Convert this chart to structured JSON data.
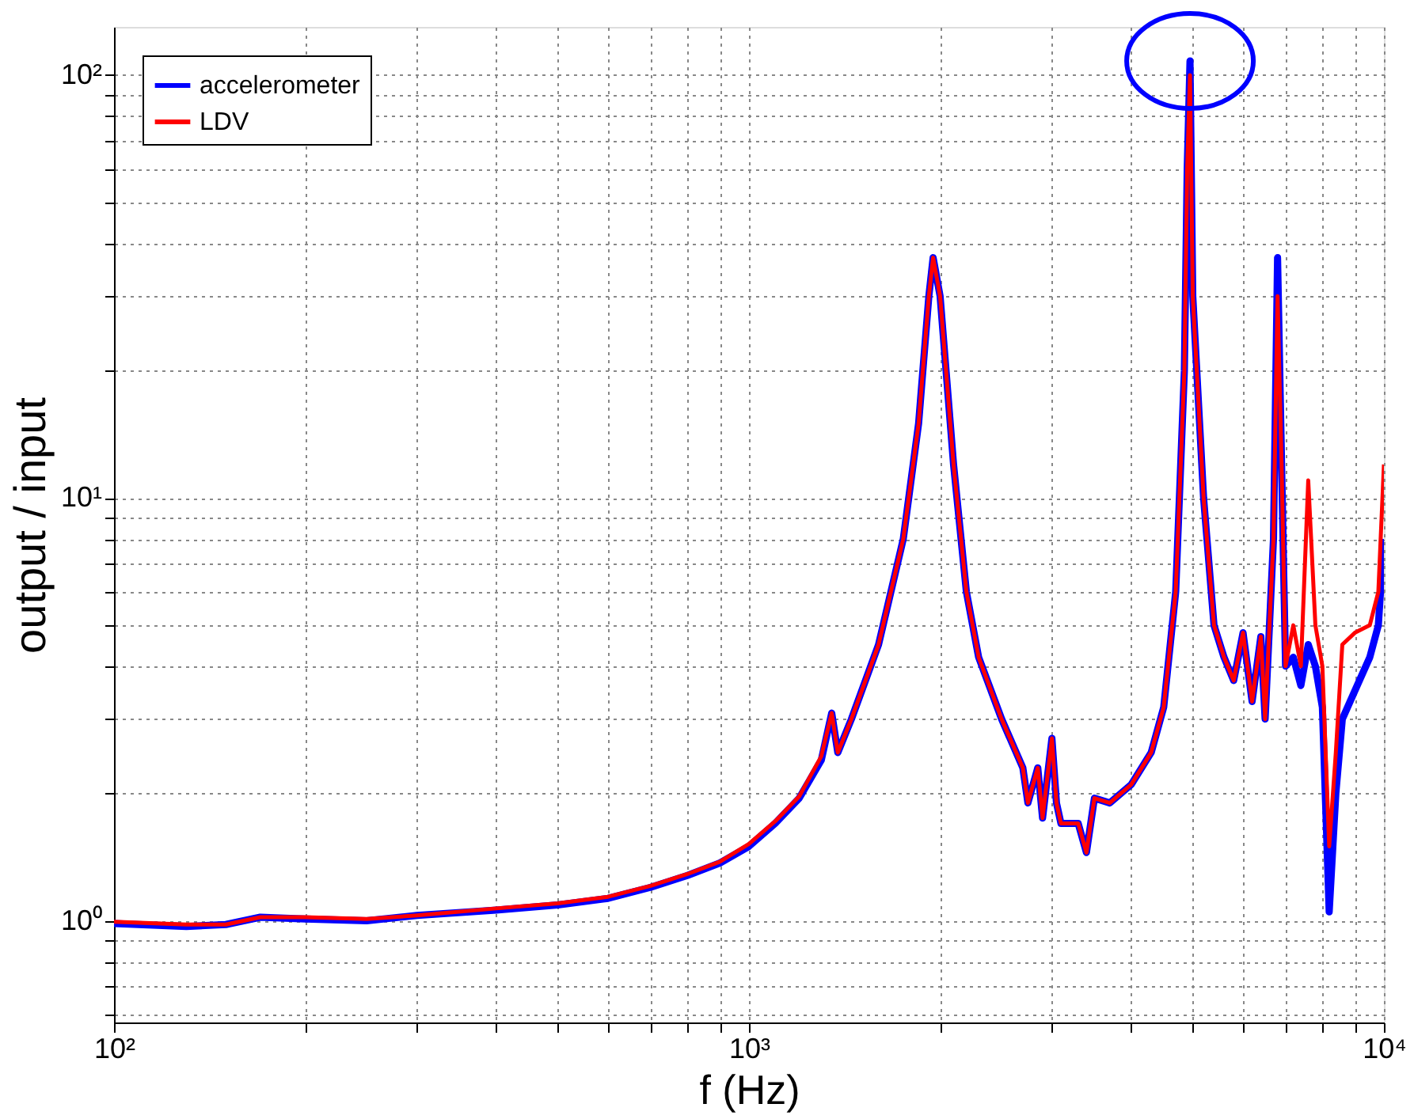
{
  "chart_data": {
    "type": "line",
    "xlabel": "f (Hz)",
    "ylabel": "output / input",
    "log": "xy",
    "grid": true,
    "legend": "top left",
    "line_style": "solid",
    "marker": "none",
    "xlim": [
      100,
      10000
    ],
    "ylim": [
      0.575,
      130
    ],
    "xticks": [
      {
        "value": 100,
        "label": "10²"
      },
      {
        "value": 200,
        "label": null
      },
      {
        "value": 300,
        "label": null
      },
      {
        "value": 400,
        "label": null
      },
      {
        "value": 500,
        "label": null
      },
      {
        "value": 600,
        "label": null
      },
      {
        "value": 700,
        "label": null
      },
      {
        "value": 800,
        "label": null
      },
      {
        "value": 900,
        "label": null
      },
      {
        "value": 1000,
        "label": "10³"
      },
      {
        "value": 2000,
        "label": null
      },
      {
        "value": 3000,
        "label": null
      },
      {
        "value": 4000,
        "label": null
      },
      {
        "value": 5000,
        "label": null
      },
      {
        "value": 6000,
        "label": null
      },
      {
        "value": 7000,
        "label": null
      },
      {
        "value": 8000,
        "label": null
      },
      {
        "value": 9000,
        "label": null
      },
      {
        "value": 10000,
        "label": "10⁴"
      }
    ],
    "yticks": [
      {
        "value": 0.6,
        "label": null
      },
      {
        "value": 0.7,
        "label": null
      },
      {
        "value": 0.8,
        "label": null
      },
      {
        "value": 0.9,
        "label": null
      },
      {
        "value": 1,
        "label": "10⁰"
      },
      {
        "value": 2,
        "label": null
      },
      {
        "value": 3,
        "label": null
      },
      {
        "value": 4,
        "label": null
      },
      {
        "value": 5,
        "label": null
      },
      {
        "value": 6,
        "label": null
      },
      {
        "value": 7,
        "label": null
      },
      {
        "value": 8,
        "label": null
      },
      {
        "value": 9,
        "label": null
      },
      {
        "value": 10,
        "label": "10¹"
      },
      {
        "value": 20,
        "label": null
      },
      {
        "value": 30,
        "label": null
      },
      {
        "value": 40,
        "label": null
      },
      {
        "value": 50,
        "label": null
      },
      {
        "value": 60,
        "label": null
      },
      {
        "value": 70,
        "label": null
      },
      {
        "value": 80,
        "label": null
      },
      {
        "value": 90,
        "label": null
      },
      {
        "value": 100,
        "label": "10²"
      }
    ],
    "x": [
      100,
      130,
      150,
      170,
      200,
      250,
      300,
      400,
      500,
      600,
      700,
      800,
      900,
      1000,
      1100,
      1200,
      1300,
      1350,
      1380,
      1450,
      1600,
      1750,
      1850,
      1920,
      1950,
      2000,
      2100,
      2200,
      2300,
      2500,
      2700,
      2750,
      2850,
      2900,
      3000,
      3050,
      3100,
      3300,
      3400,
      3500,
      3700,
      4000,
      4300,
      4500,
      4700,
      4850,
      4900,
      4950,
      5000,
      5200,
      5400,
      5600,
      5800,
      6000,
      6200,
      6400,
      6500,
      6700,
      6800,
      6900,
      7000,
      7200,
      7400,
      7600,
      7800,
      8000,
      8200,
      8400,
      8600,
      9000,
      9500,
      9800,
      10000
    ],
    "series": [
      {
        "name": "accelerometer",
        "color": "#0000ff",
        "values": [
          0.985,
          0.97,
          0.98,
          1.02,
          1.01,
          1.0,
          1.03,
          1.06,
          1.09,
          1.13,
          1.2,
          1.28,
          1.37,
          1.5,
          1.7,
          1.95,
          2.4,
          3.1,
          2.5,
          3.0,
          4.5,
          8,
          15,
          30,
          37,
          30,
          12,
          6,
          4.2,
          3.0,
          2.3,
          1.9,
          2.3,
          1.75,
          2.7,
          1.9,
          1.7,
          1.7,
          1.45,
          1.95,
          1.9,
          2.1,
          2.5,
          3.2,
          6,
          20,
          60,
          108,
          30,
          10,
          5,
          4.2,
          3.7,
          4.8,
          3.3,
          4.7,
          3.0,
          8,
          37,
          12,
          4.0,
          4.2,
          3.6,
          4.5,
          4.0,
          3.2,
          1.05,
          2.0,
          3.0,
          3.5,
          4.2,
          5.0,
          8
        ]
      },
      {
        "name": "LDV",
        "color": "#ff0000",
        "values": [
          0.995,
          0.98,
          0.98,
          1.02,
          1.02,
          1.01,
          1.03,
          1.07,
          1.1,
          1.14,
          1.21,
          1.29,
          1.38,
          1.52,
          1.72,
          1.97,
          2.45,
          3.1,
          2.5,
          3.0,
          4.5,
          8,
          15,
          30,
          37,
          30,
          12,
          6,
          4.2,
          3.0,
          2.3,
          1.9,
          2.3,
          1.75,
          2.7,
          1.9,
          1.7,
          1.7,
          1.45,
          1.95,
          1.9,
          2.1,
          2.5,
          3.2,
          6,
          20,
          60,
          100,
          30,
          10,
          5,
          4.2,
          3.7,
          4.8,
          3.3,
          4.7,
          3.0,
          8,
          30,
          12,
          4.0,
          5.0,
          4.0,
          11,
          5.0,
          4.0,
          1.5,
          2.5,
          4.5,
          4.8,
          5.0,
          6.0,
          12
        ]
      }
    ]
  }
}
